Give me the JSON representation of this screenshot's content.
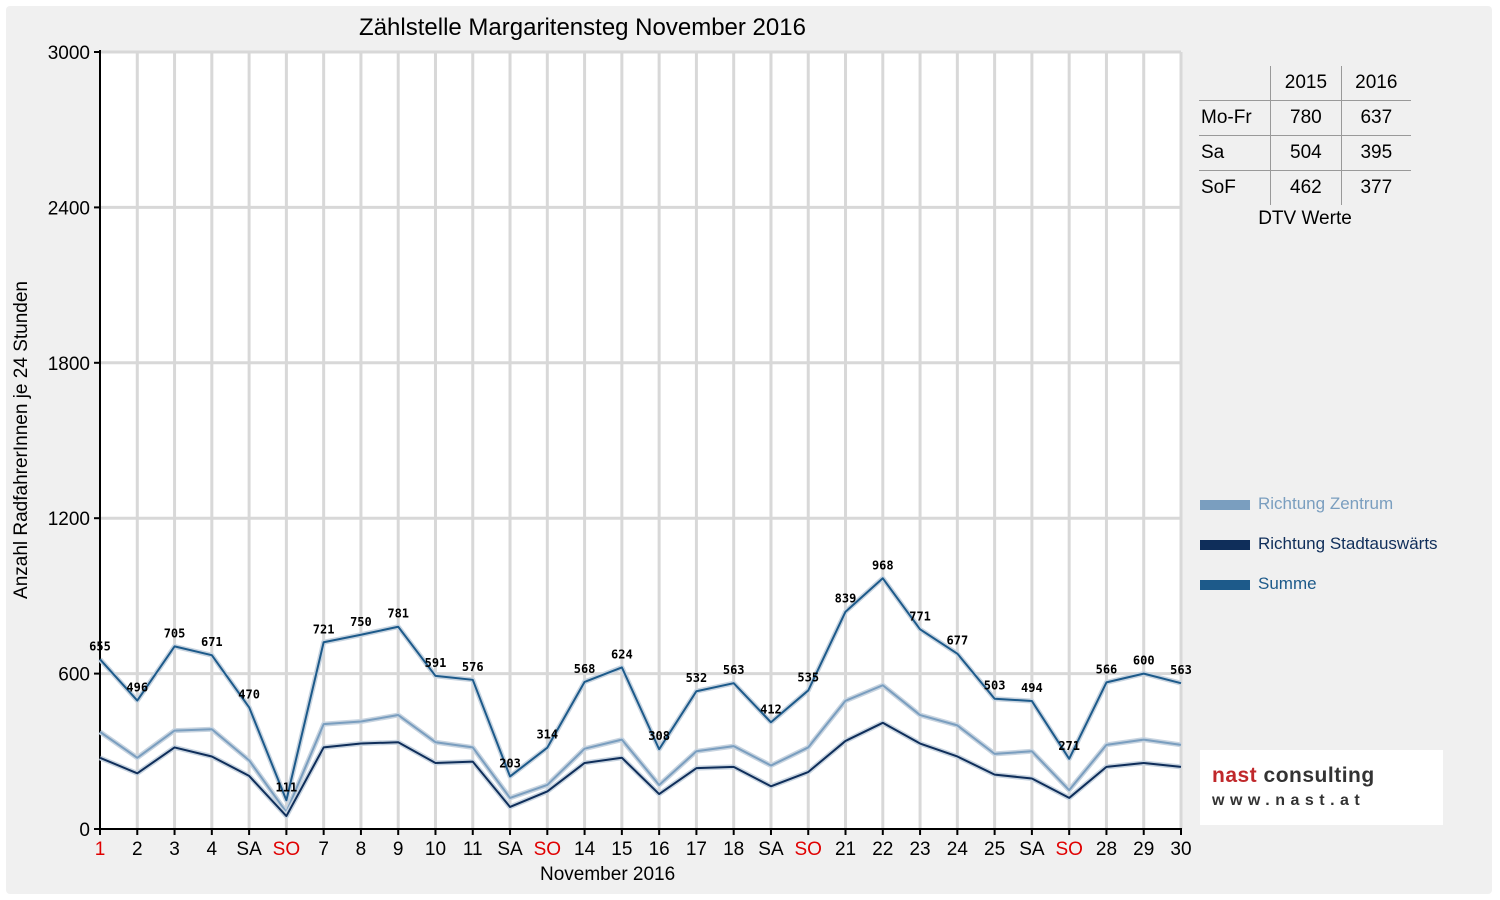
{
  "chart_data": {
    "type": "line",
    "title": "Zählstelle Margaritensteg November 2016",
    "xlabel": "November 2016",
    "ylabel": "Anzahl RadfahrerInnen je 24 Stunden",
    "ylim": [
      0,
      3000
    ],
    "yticks": [
      0,
      600,
      1200,
      1800,
      2400,
      3000
    ],
    "categories": [
      "1",
      "2",
      "3",
      "4",
      "SA",
      "SO",
      "7",
      "8",
      "9",
      "10",
      "11",
      "SA",
      "SO",
      "14",
      "15",
      "16",
      "17",
      "18",
      "SA",
      "SO",
      "21",
      "22",
      "23",
      "24",
      "25",
      "SA",
      "SO",
      "28",
      "29",
      "30"
    ],
    "category_colors": [
      "#e00000",
      "#000000",
      "#000000",
      "#000000",
      "#000000",
      "#e00000",
      "#000000",
      "#000000",
      "#000000",
      "#000000",
      "#000000",
      "#000000",
      "#e00000",
      "#000000",
      "#000000",
      "#000000",
      "#000000",
      "#000000",
      "#000000",
      "#e00000",
      "#000000",
      "#000000",
      "#000000",
      "#000000",
      "#000000",
      "#000000",
      "#e00000",
      "#000000",
      "#000000",
      "#000000"
    ],
    "grid": true,
    "legend_position": "right",
    "series": [
      {
        "name": "Richtung Zentrum",
        "color": "#7a9ebf",
        "values": [
          375,
          275,
          380,
          385,
          265,
          65,
          405,
          415,
          440,
          335,
          315,
          120,
          170,
          310,
          345,
          170,
          300,
          320,
          245,
          315,
          495,
          555,
          440,
          400,
          290,
          300,
          150,
          325,
          345,
          325
        ]
      },
      {
        "name": "Richtung Stadtauswärts",
        "color": "#0f2e5a",
        "values": [
          275,
          215,
          315,
          280,
          205,
          50,
          315,
          330,
          335,
          255,
          260,
          85,
          145,
          255,
          275,
          135,
          235,
          240,
          165,
          220,
          340,
          410,
          330,
          280,
          210,
          195,
          120,
          240,
          255,
          240
        ]
      },
      {
        "name": "Summe",
        "color": "#1d5a8a",
        "values": [
          655,
          496,
          705,
          671,
          470,
          111,
          721,
          750,
          781,
          591,
          576,
          203,
          314,
          568,
          624,
          308,
          532,
          563,
          412,
          535,
          839,
          968,
          771,
          677,
          503,
          494,
          271,
          566,
          600,
          563
        ]
      }
    ],
    "data_labels": [
      "655",
      "496",
      "705",
      "671",
      "470",
      "111",
      "721",
      "750",
      "781",
      "591",
      "576",
      "203",
      "314",
      "568",
      "624",
      "308",
      "532",
      "563",
      "412",
      "535",
      "839",
      "968",
      "771",
      "677",
      "503",
      "494",
      "271",
      "566",
      "600",
      "563"
    ]
  },
  "dtv_table": {
    "headers": [
      "",
      "2015",
      "2016"
    ],
    "rows": [
      {
        "label": "Mo-Fr",
        "y2015": "780",
        "y2016": "637"
      },
      {
        "label": "Sa",
        "y2015": "504",
        "y2016": "395"
      },
      {
        "label": "SoF",
        "y2015": "462",
        "y2016": "377"
      }
    ],
    "caption": "DTV Werte"
  },
  "logo": {
    "brand_part1": "nast",
    "brand_part2": "consulting",
    "url": "www.nast.at",
    "brand_color": "#c0282b"
  }
}
